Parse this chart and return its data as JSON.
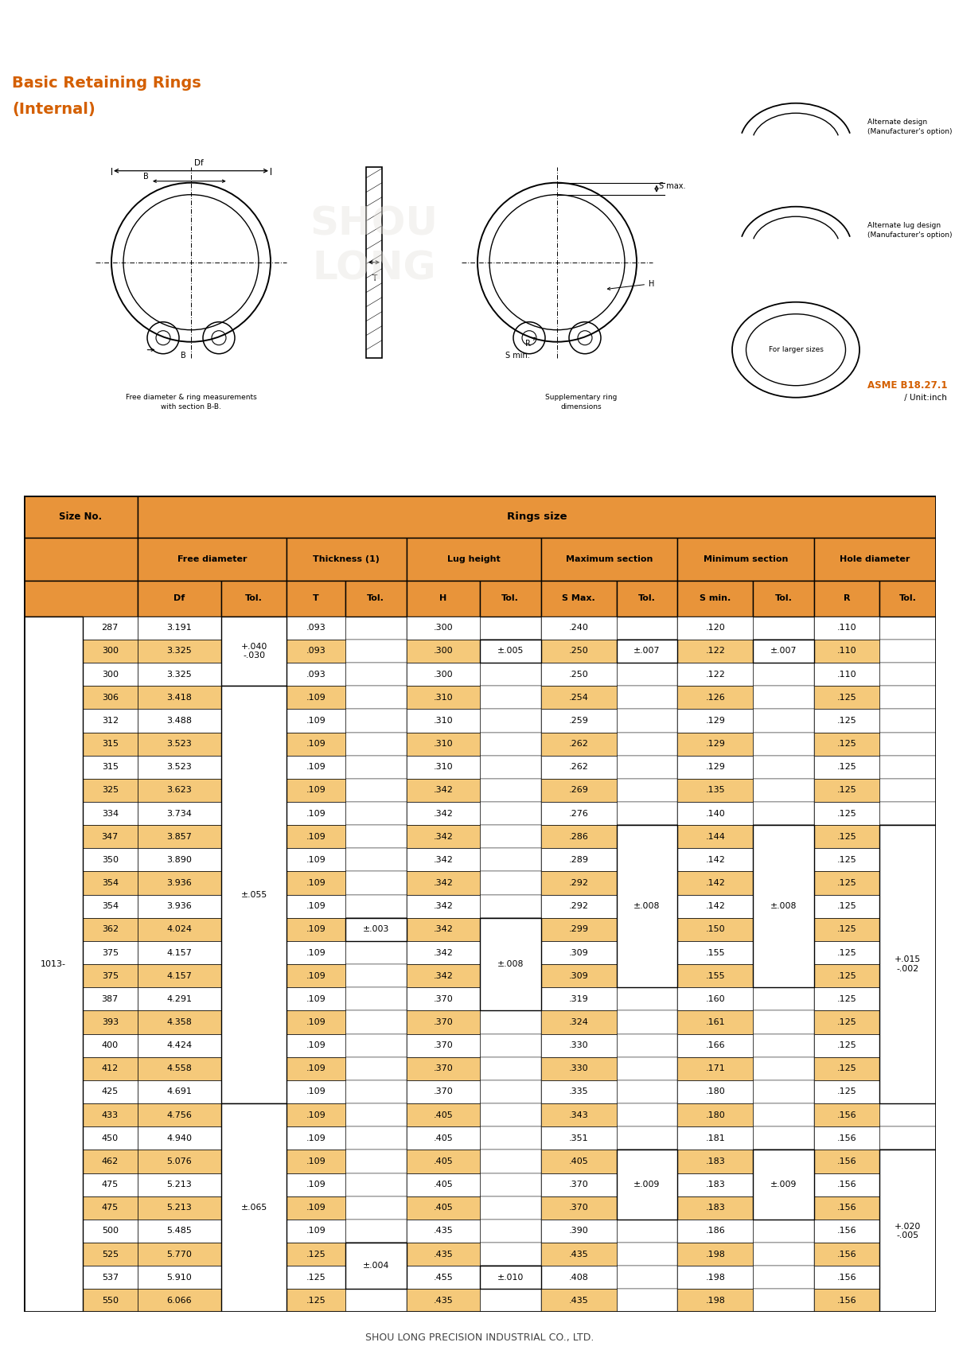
{
  "title_line1": "Basic Retaining Rings",
  "title_line2": "(Internal)",
  "title_color": "#D45F00",
  "asme_bold": "ASME B18.27.1",
  "asme_normal": " / Unit:inch",
  "footer": "SHOU LONG PRECISION INDUSTRIAL CO., LTD.",
  "header_bg": "#E8943A",
  "row_odd_bg": "#F5C97A",
  "row_even_bg": "#FFFFFF",
  "border_color": "#000000",
  "rows": [
    {
      "sub": "287",
      "Df": "3.191",
      "T": ".093",
      "H": ".300",
      "Smax": ".240",
      "Smin": ".120",
      "R": ".110",
      "shade": false
    },
    {
      "sub": "300",
      "Df": "3.325",
      "T": ".093",
      "H": ".300",
      "Smax": ".250",
      "Smin": ".122",
      "R": ".110",
      "shade": true
    },
    {
      "sub": "300",
      "Df": "3.325",
      "T": ".093",
      "H": ".300",
      "Smax": ".250",
      "Smin": ".122",
      "R": ".110",
      "shade": false
    },
    {
      "sub": "306",
      "Df": "3.418",
      "T": ".109",
      "H": ".310",
      "Smax": ".254",
      "Smin": ".126",
      "R": ".125",
      "shade": true
    },
    {
      "sub": "312",
      "Df": "3.488",
      "T": ".109",
      "H": ".310",
      "Smax": ".259",
      "Smin": ".129",
      "R": ".125",
      "shade": false
    },
    {
      "sub": "315",
      "Df": "3.523",
      "T": ".109",
      "H": ".310",
      "Smax": ".262",
      "Smin": ".129",
      "R": ".125",
      "shade": true
    },
    {
      "sub": "315",
      "Df": "3.523",
      "T": ".109",
      "H": ".310",
      "Smax": ".262",
      "Smin": ".129",
      "R": ".125",
      "shade": false
    },
    {
      "sub": "325",
      "Df": "3.623",
      "T": ".109",
      "H": ".342",
      "Smax": ".269",
      "Smin": ".135",
      "R": ".125",
      "shade": true
    },
    {
      "sub": "334",
      "Df": "3.734",
      "T": ".109",
      "H": ".342",
      "Smax": ".276",
      "Smin": ".140",
      "R": ".125",
      "shade": false
    },
    {
      "sub": "347",
      "Df": "3.857",
      "T": ".109",
      "H": ".342",
      "Smax": ".286",
      "Smin": ".144",
      "R": ".125",
      "shade": true
    },
    {
      "sub": "350",
      "Df": "3.890",
      "T": ".109",
      "H": ".342",
      "Smax": ".289",
      "Smin": ".142",
      "R": ".125",
      "shade": false
    },
    {
      "sub": "354",
      "Df": "3.936",
      "T": ".109",
      "H": ".342",
      "Smax": ".292",
      "Smin": ".142",
      "R": ".125",
      "shade": true
    },
    {
      "sub": "354",
      "Df": "3.936",
      "T": ".109",
      "H": ".342",
      "Smax": ".292",
      "Smin": ".142",
      "R": ".125",
      "shade": false
    },
    {
      "sub": "362",
      "Df": "4.024",
      "T": ".109",
      "H": ".342",
      "Smax": ".299",
      "Smin": ".150",
      "R": ".125",
      "shade": true
    },
    {
      "sub": "375",
      "Df": "4.157",
      "T": ".109",
      "H": ".342",
      "Smax": ".309",
      "Smin": ".155",
      "R": ".125",
      "shade": false
    },
    {
      "sub": "375",
      "Df": "4.157",
      "T": ".109",
      "H": ".342",
      "Smax": ".309",
      "Smin": ".155",
      "R": ".125",
      "shade": true
    },
    {
      "sub": "387",
      "Df": "4.291",
      "T": ".109",
      "H": ".370",
      "Smax": ".319",
      "Smin": ".160",
      "R": ".125",
      "shade": false
    },
    {
      "sub": "393",
      "Df": "4.358",
      "T": ".109",
      "H": ".370",
      "Smax": ".324",
      "Smin": ".161",
      "R": ".125",
      "shade": true
    },
    {
      "sub": "400",
      "Df": "4.424",
      "T": ".109",
      "H": ".370",
      "Smax": ".330",
      "Smin": ".166",
      "R": ".125",
      "shade": false
    },
    {
      "sub": "412",
      "Df": "4.558",
      "T": ".109",
      "H": ".370",
      "Smax": ".330",
      "Smin": ".171",
      "R": ".125",
      "shade": true
    },
    {
      "sub": "425",
      "Df": "4.691",
      "T": ".109",
      "H": ".370",
      "Smax": ".335",
      "Smin": ".180",
      "R": ".125",
      "shade": false
    },
    {
      "sub": "433",
      "Df": "4.756",
      "T": ".109",
      "H": ".405",
      "Smax": ".343",
      "Smin": ".180",
      "R": ".156",
      "shade": true
    },
    {
      "sub": "450",
      "Df": "4.940",
      "T": ".109",
      "H": ".405",
      "Smax": ".351",
      "Smin": ".181",
      "R": ".156",
      "shade": false
    },
    {
      "sub": "462",
      "Df": "5.076",
      "T": ".109",
      "H": ".405",
      "Smax": ".405",
      "Smin": ".183",
      "R": ".156",
      "shade": true
    },
    {
      "sub": "475",
      "Df": "5.213",
      "T": ".109",
      "H": ".405",
      "Smax": ".370",
      "Smin": ".183",
      "R": ".156",
      "shade": false
    },
    {
      "sub": "475",
      "Df": "5.213",
      "T": ".109",
      "H": ".405",
      "Smax": ".370",
      "Smin": ".183",
      "R": ".156",
      "shade": true
    },
    {
      "sub": "500",
      "Df": "5.485",
      "T": ".109",
      "H": ".435",
      "Smax": ".390",
      "Smin": ".186",
      "R": ".156",
      "shade": false
    },
    {
      "sub": "525",
      "Df": "5.770",
      "T": ".125",
      "H": ".435",
      "Smax": ".435",
      "Smin": ".198",
      "R": ".156",
      "shade": true
    },
    {
      "sub": "537",
      "Df": "5.910",
      "T": ".125",
      "H": ".455",
      "Smax": ".408",
      "Smin": ".198",
      "R": ".156",
      "shade": false
    },
    {
      "sub": "550",
      "Df": "6.066",
      "T": ".125",
      "H": ".435",
      "Smax": ".435",
      "Smin": ".198",
      "R": ".156",
      "shade": true
    }
  ]
}
